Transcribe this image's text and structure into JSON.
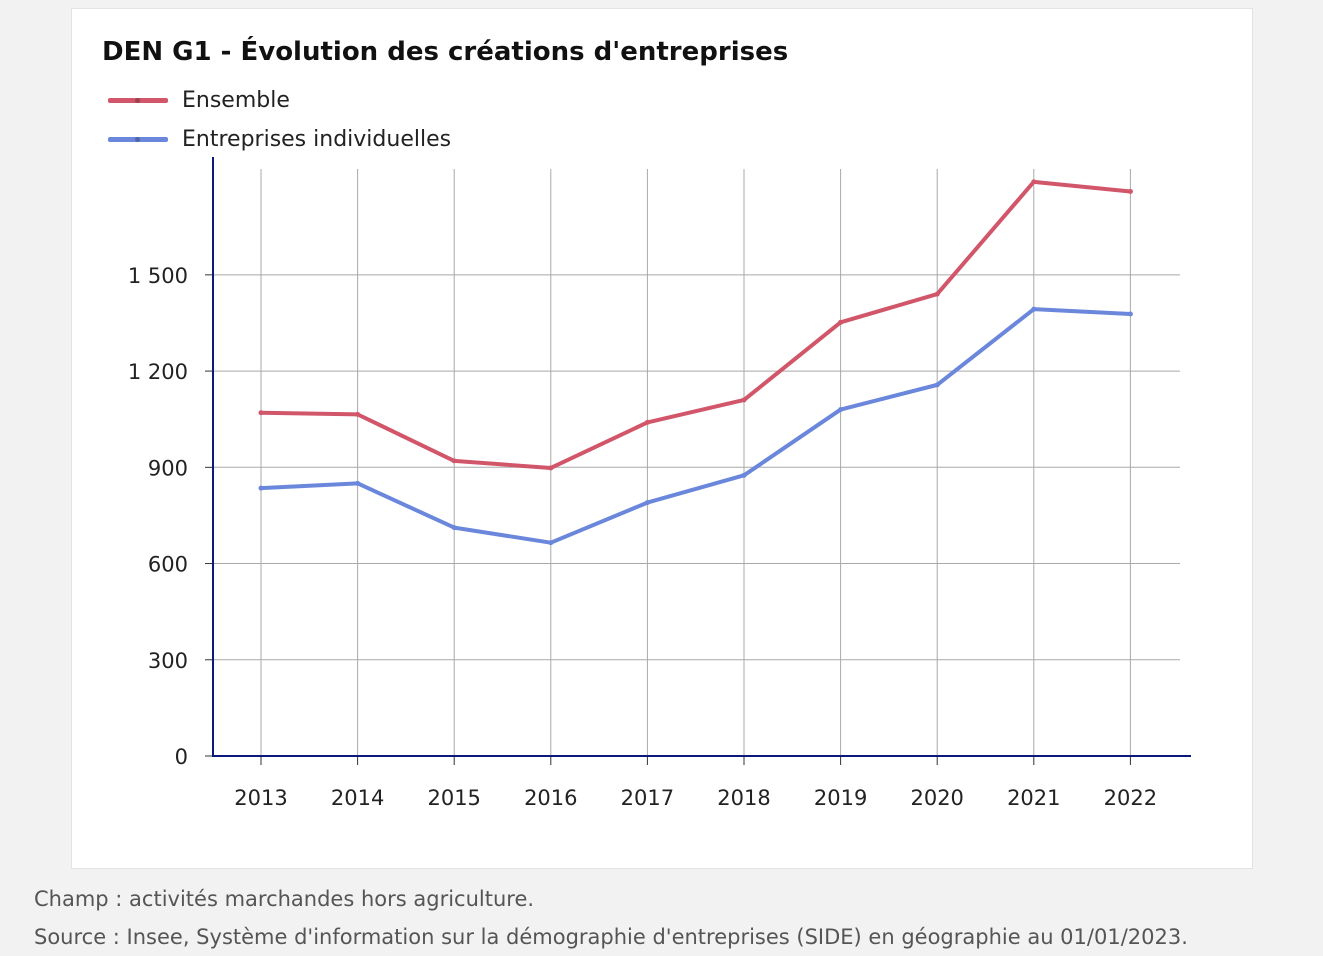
{
  "chart_data": {
    "type": "line",
    "title": "DEN G1 - Évolution des créations d'entreprises",
    "categories": [
      "2013",
      "2014",
      "2015",
      "2016",
      "2017",
      "2018",
      "2019",
      "2020",
      "2021",
      "2022"
    ],
    "series": [
      {
        "name": "Ensemble",
        "color": "#d2566a",
        "values": [
          1070,
          1065,
          920,
          898,
          1040,
          1110,
          1352,
          1440,
          1790,
          1760
        ]
      },
      {
        "name": "Entreprises individuelles",
        "color": "#6a87dc",
        "values": [
          835,
          850,
          712,
          665,
          790,
          875,
          1080,
          1157,
          1393,
          1378
        ]
      }
    ],
    "yticks": [
      0,
      300,
      600,
      900,
      1200,
      1500
    ],
    "ytick_labels": [
      "0",
      "300",
      "600",
      "900",
      "1 200",
      "1 500"
    ],
    "ylim": [
      0,
      1830
    ],
    "xlabel": "",
    "ylabel": "",
    "grid": true,
    "legend_position": "top-left"
  },
  "notes": {
    "champ": "Champ : activités marchandes hors agriculture.",
    "source": "Source : Insee, Système d'information sur la démographie d'entreprises (SIDE) en géographie au 01/01/2023."
  }
}
